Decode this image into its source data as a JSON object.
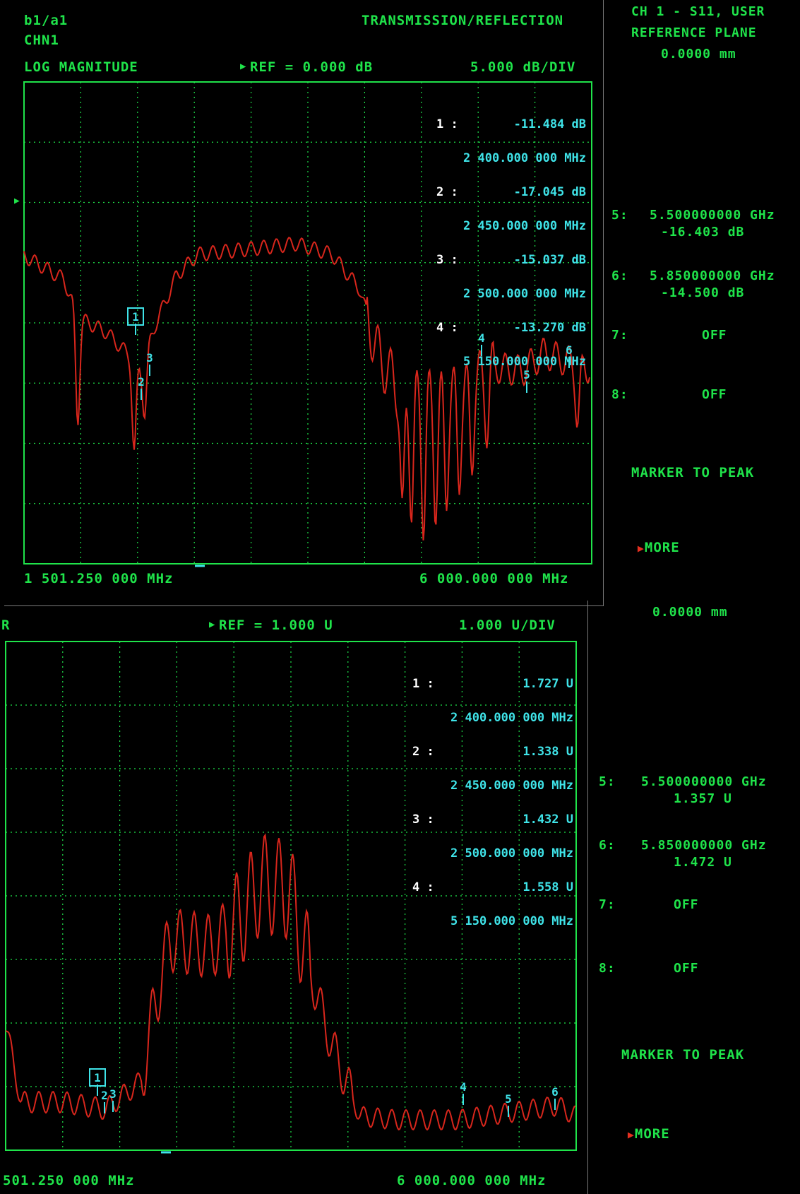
{
  "top_panel": {
    "measurement": "b1/a1",
    "channel": "CHN1",
    "mode": "TRANSMISSION/REFLECTION",
    "format": "LOG MAGNITUDE",
    "ref": "REF = 0.000 dB",
    "scale": "5.000 dB/DIV",
    "start_freq": "1 501.250 000 MHz",
    "stop_freq": "6 000.000 000 MHz",
    "markers": [
      {
        "num": "1 :",
        "value": "-11.484 dB",
        "freq": "2 400.000 000 MHz"
      },
      {
        "num": "2 :",
        "value": "-17.045 dB",
        "freq": "2 450.000 000 MHz"
      },
      {
        "num": "3 :",
        "value": "-15.037 dB",
        "freq": "2 500.000 000 MHz"
      },
      {
        "num": "4 :",
        "value": "-13.270 dB",
        "freq": "5 150.000 000 MHz"
      }
    ],
    "marker_tags": [
      "1",
      "2",
      "3",
      "4",
      "5",
      "6"
    ]
  },
  "bottom_panel": {
    "truncated_label": "R",
    "ref": "REF = 1.000 U",
    "scale": "1.000 U/DIV",
    "start_freq": "501.250 000 MHz",
    "stop_freq": "6 000.000 000 MHz",
    "markers": [
      {
        "num": "1 :",
        "value": "1.727 U",
        "freq": "2 400.000 000 MHz"
      },
      {
        "num": "2 :",
        "value": "1.338 U",
        "freq": "2 450.000 000 MHz"
      },
      {
        "num": "3 :",
        "value": "1.432 U",
        "freq": "2 500.000 000 MHz"
      },
      {
        "num": "4 :",
        "value": "1.558 U",
        "freq": "5 150.000 000 MHz"
      }
    ],
    "marker_tags": [
      "1",
      "2",
      "3",
      "4",
      "5",
      "6"
    ]
  },
  "side_top": {
    "header_line1": "CH 1 - S11, USER",
    "header_line2": "REFERENCE PLANE",
    "header_line3": "0.0000 mm",
    "m5_label": "5:",
    "m5_freq": "5.500000000 GHz",
    "m5_value": "-16.403 dB",
    "m6_label": "6:",
    "m6_freq": "5.850000000 GHz",
    "m6_value": "-14.500 dB",
    "m7_label": "7:",
    "m7_value": "OFF",
    "m8_label": "8:",
    "m8_value": "OFF",
    "marker_to_peak": "MARKER TO PEAK",
    "more": "MORE"
  },
  "side_bottom": {
    "ref_plane": "0.0000 mm",
    "m5_label": "5:",
    "m5_freq": "5.500000000 GHz",
    "m5_value": "1.357 U",
    "m6_label": "6:",
    "m6_freq": "5.850000000 GHz",
    "m6_value": "1.472 U",
    "m7_label": "7:",
    "m7_value": "OFF",
    "m8_label": "8:",
    "m8_value": "OFF",
    "marker_to_peak": "MARKER TO PEAK",
    "more": "MORE"
  },
  "colors": {
    "trace": "#d8261c",
    "grid": "#1fe34a",
    "text": "#1fe34a",
    "marker": "#3fe3e8",
    "frame": "#7a7a7a"
  }
}
